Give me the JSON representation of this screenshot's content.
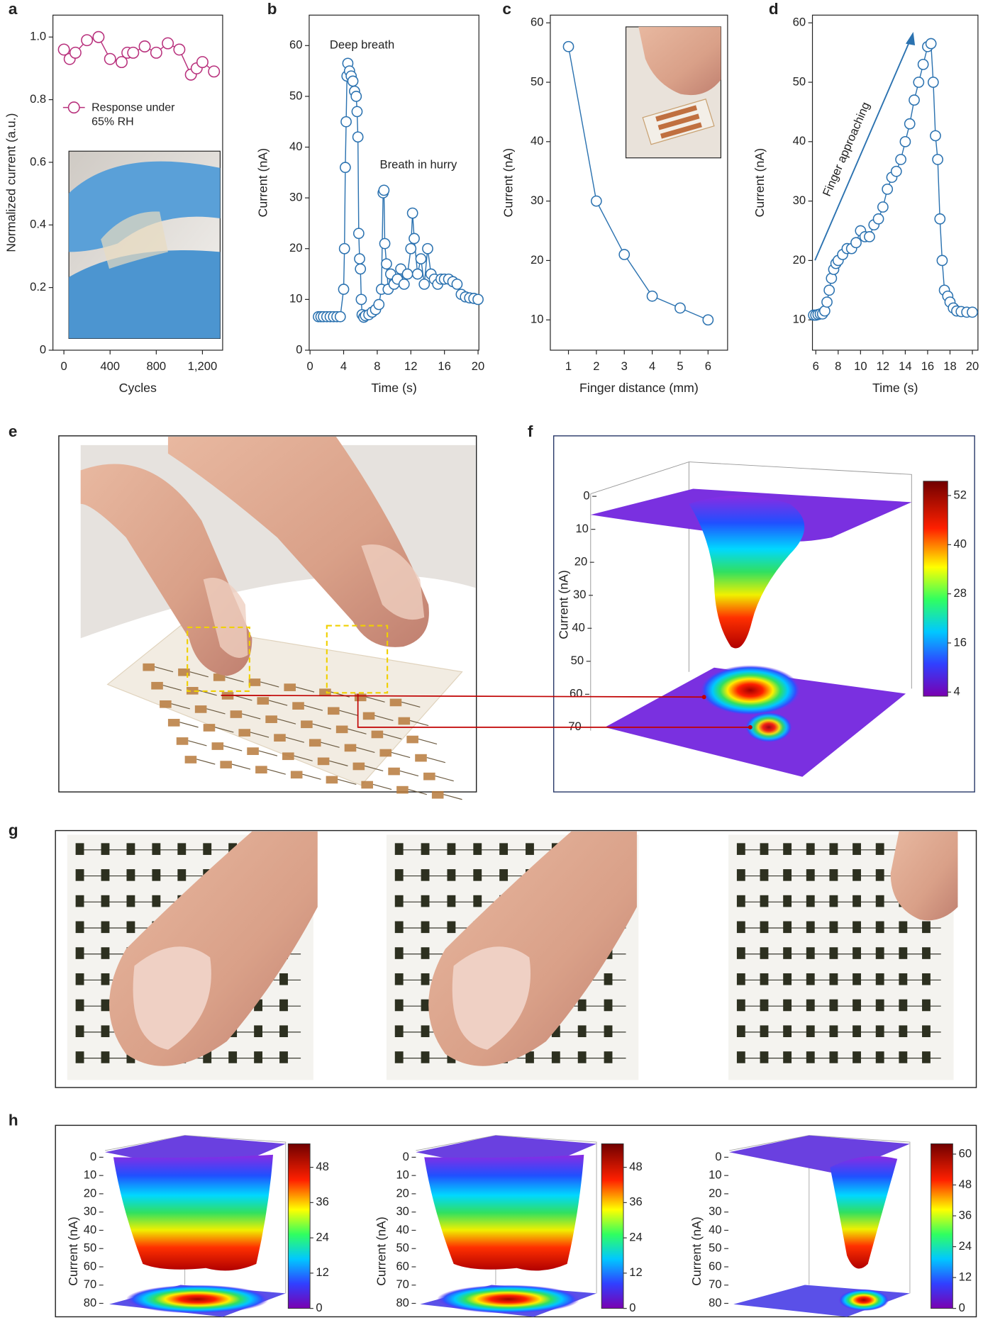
{
  "chart_data": [
    {
      "panel": "a",
      "type": "line",
      "x_label": "Cycles",
      "y_label": "Normalized current (a.u.)",
      "x": [
        0,
        50,
        100,
        200,
        300,
        400,
        500,
        550,
        600,
        700,
        800,
        900,
        1000,
        1100,
        1150,
        1200,
        1300
      ],
      "series": [
        {
          "name": "Response under 65% RH",
          "color": "#b8307c",
          "values": [
            0.96,
            0.93,
            0.95,
            0.99,
            1.0,
            0.93,
            0.92,
            0.95,
            0.95,
            0.97,
            0.95,
            0.98,
            0.96,
            0.88,
            0.9,
            0.92,
            0.89
          ]
        }
      ],
      "legend": "upper left",
      "xlim": [
        -95,
        1375
      ],
      "ylim": [
        0,
        1.07
      ],
      "xticks": [
        0,
        400,
        800,
        {
          "value": 1200,
          "label": "1,200"
        }
      ],
      "yticks": [
        0,
        0.2,
        0.4,
        0.6,
        0.8,
        {
          "value": 1,
          "label": "1.0"
        }
      ]
    },
    {
      "panel": "b",
      "type": "line",
      "x_label": "Time (s)",
      "y_label": "Current (nA)",
      "color": "#2b72b0",
      "annotations": [
        "Deep breath",
        "Breath in hurry"
      ],
      "x": [
        1,
        1.3,
        1.6,
        2,
        2.4,
        2.8,
        3.2,
        3.6,
        4.0,
        4.1,
        4.2,
        4.3,
        4.4,
        4.5,
        4.7,
        4.9,
        5.1,
        5.3,
        5.5,
        5.6,
        5.7,
        5.8,
        5.9,
        6.0,
        6.1,
        6.2,
        6.4,
        6.6,
        7.0,
        7.4,
        7.8,
        8.2,
        8.5,
        8.7,
        8.8,
        8.9,
        9.1,
        9.3,
        9.6,
        10,
        10.4,
        10.8,
        11.2,
        11.6,
        12,
        12.2,
        12.4,
        12.8,
        13.2,
        13.6,
        14,
        14.4,
        14.8,
        15.2,
        15.6,
        16,
        16.5,
        17,
        17.5,
        18,
        18.5,
        19,
        19.5,
        20
      ],
      "values": [
        6.6,
        6.6,
        6.6,
        6.6,
        6.6,
        6.6,
        6.6,
        6.6,
        12,
        20,
        36,
        45,
        54,
        56.5,
        55,
        54,
        53,
        51,
        50,
        47,
        42,
        23,
        18,
        16,
        10,
        7,
        6.5,
        6.8,
        7,
        7.5,
        8,
        9,
        12,
        31,
        31.5,
        21,
        17,
        12,
        15,
        13,
        14,
        16,
        13,
        15,
        20,
        27,
        22,
        15,
        18,
        13,
        20,
        15,
        14,
        13,
        14,
        14,
        14,
        13.5,
        13,
        11,
        10.5,
        10.3,
        10.2,
        10
      ],
      "xlim": [
        -0.1,
        20.1
      ],
      "ylim": [
        0,
        66
      ],
      "xticks": [
        0,
        4,
        8,
        12,
        16,
        20
      ],
      "yticks": [
        0,
        10,
        20,
        30,
        40,
        50,
        60
      ]
    },
    {
      "panel": "c",
      "type": "line",
      "x_label": "Finger distance (mm)",
      "y_label": "Current (nA)",
      "color": "#2b72b0",
      "x": [
        1,
        2,
        3,
        4,
        5,
        6
      ],
      "values": [
        56,
        30,
        21,
        14,
        12,
        10
      ],
      "xlim": [
        0.35,
        6.7
      ],
      "ylim": [
        4.9,
        61.3
      ],
      "xticks": [
        1,
        2,
        3,
        4,
        5,
        6
      ],
      "yticks": [
        10,
        20,
        30,
        40,
        50,
        60
      ]
    },
    {
      "panel": "d",
      "type": "line",
      "x_label": "Time (s)",
      "y_label": "Current (nA)",
      "color": "#2b72b0",
      "annotations": [
        "Finger approaching"
      ],
      "x": [
        5.8,
        6,
        6.2,
        6.4,
        6.6,
        6.8,
        7,
        7.2,
        7.4,
        7.6,
        7.8,
        8,
        8.4,
        8.8,
        9.2,
        9.6,
        10,
        10.4,
        10.8,
        11.2,
        11.6,
        12,
        12.4,
        12.8,
        13.2,
        13.6,
        14,
        14.4,
        14.8,
        15.2,
        15.6,
        16,
        16.3,
        16.5,
        16.7,
        16.9,
        17.1,
        17.3,
        17.5,
        17.8,
        18,
        18.3,
        18.6,
        19,
        19.5,
        20
      ],
      "values": [
        10.8,
        10.8,
        10.9,
        11,
        11,
        11.5,
        13,
        15,
        17,
        18.5,
        19.5,
        20,
        21,
        22,
        22,
        23,
        25,
        24,
        24,
        26,
        27,
        29,
        32,
        34,
        35,
        37,
        40,
        43,
        47,
        50,
        53,
        56,
        56.5,
        50,
        41,
        37,
        27,
        20,
        15,
        14,
        13,
        12,
        11.5,
        11.4,
        11.3,
        11.3
      ],
      "xlim": [
        5.7,
        20.5
      ],
      "ylim": [
        4.9,
        61.3
      ],
      "xticks": [
        6,
        8,
        10,
        12,
        14,
        16,
        18,
        20
      ],
      "yticks": [
        10,
        20,
        30,
        40,
        50,
        60
      ]
    }
  ],
  "panel_e": {
    "label": "e"
  },
  "panel_f": {
    "label": "f",
    "type": "surface",
    "z_label": "Current (nA)",
    "zlim": [
      0,
      70
    ],
    "zticks": [
      0,
      10,
      20,
      30,
      40,
      50,
      60,
      70
    ],
    "colorbar": {
      "lim": [
        3,
        55.5
      ],
      "ticks": [
        4,
        16,
        28,
        40,
        52
      ]
    }
  },
  "panel_g": {
    "label": "g"
  },
  "panel_h": {
    "label": "h",
    "plots": [
      {
        "type": "surface",
        "z_label": "Current (nA)",
        "zlim": [
          0,
          80
        ],
        "zticks": [
          0,
          10,
          20,
          30,
          40,
          50,
          60,
          70,
          80
        ],
        "colorbar": {
          "lim": [
            0,
            56
          ],
          "ticks": [
            0,
            12,
            24,
            36,
            48
          ]
        }
      },
      {
        "type": "surface",
        "z_label": "Current (nA)",
        "zlim": [
          0,
          80
        ],
        "zticks": [
          0,
          10,
          20,
          30,
          40,
          50,
          60,
          70,
          80
        ],
        "colorbar": {
          "lim": [
            0,
            56
          ],
          "ticks": [
            0,
            12,
            24,
            36,
            48
          ]
        }
      },
      {
        "type": "surface",
        "z_label": "Current (nA)",
        "zlim": [
          0,
          80
        ],
        "zticks": [
          0,
          10,
          20,
          30,
          40,
          50,
          60,
          70,
          80
        ],
        "colorbar": {
          "lim": [
            0,
            64
          ],
          "ticks": [
            0,
            12,
            24,
            36,
            48,
            60
          ]
        }
      }
    ]
  }
}
